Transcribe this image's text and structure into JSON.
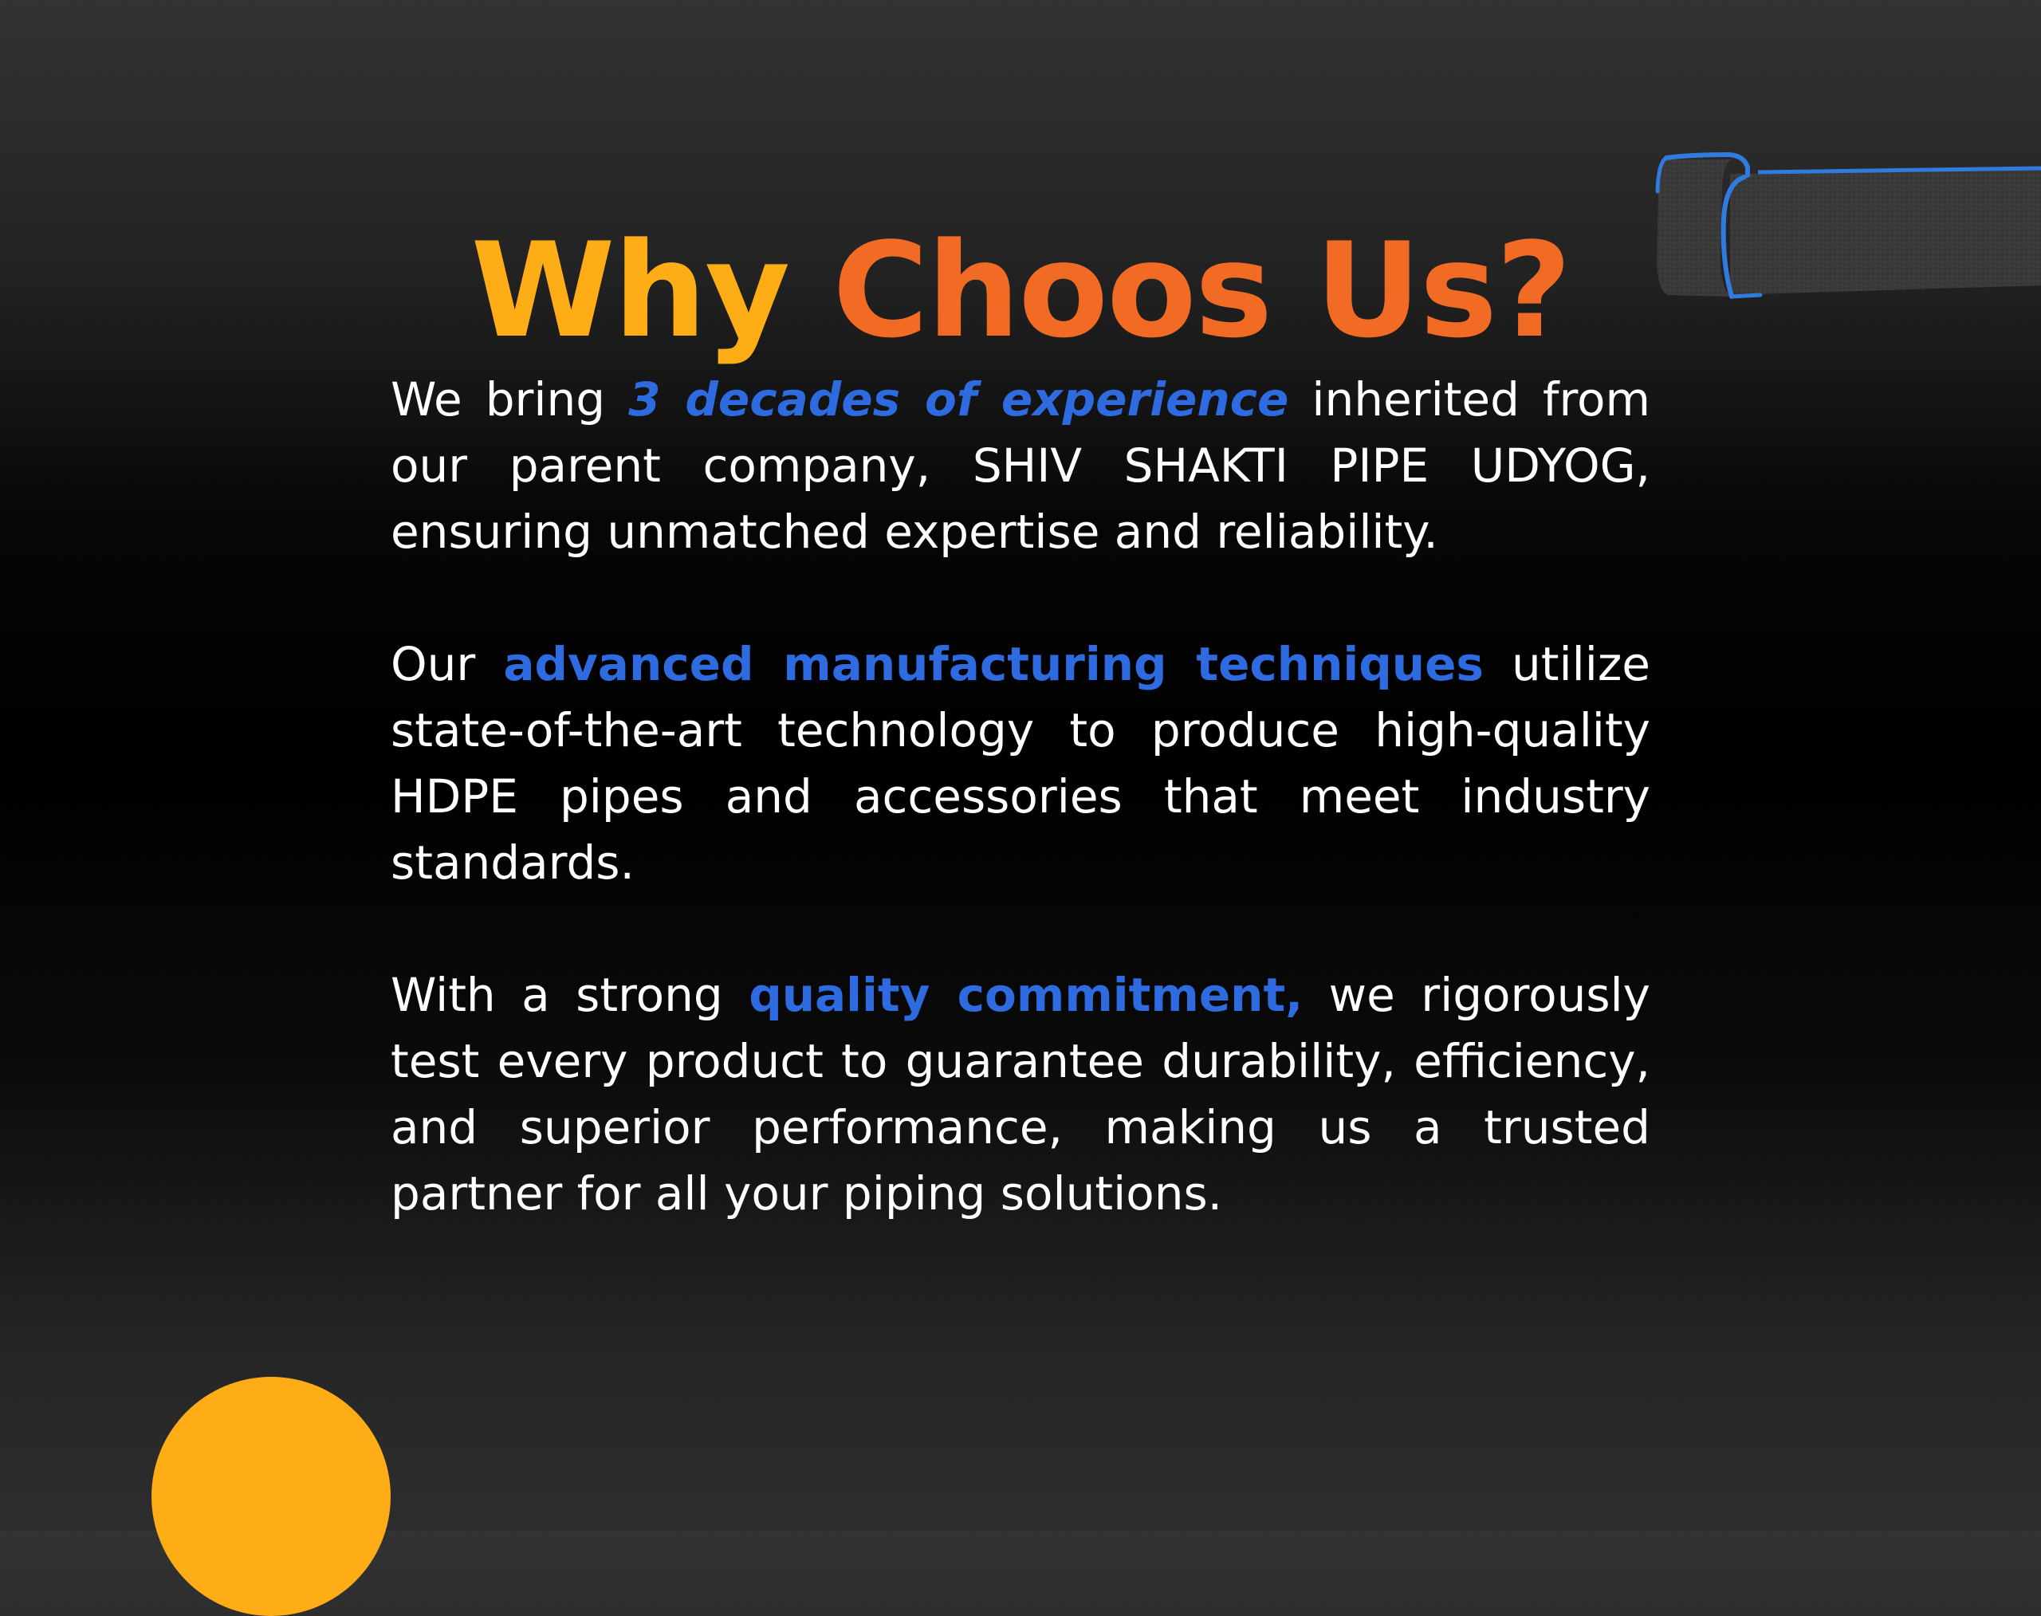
{
  "heading": {
    "part1": "Why",
    "part2": "Choos Us?"
  },
  "paragraphs": [
    {
      "before": "We bring ",
      "highlight": "3 decades of experience",
      "after": " inherited from our parent company, SHIV SHAKTI PIPE UDYOG, ensuring unmatched expertise and reliability."
    },
    {
      "before": "Our ",
      "highlight": "advanced manufacturing techniques",
      "after": " utilize state-of-the-art technology to produce high-quality HDPE pipes and accessories that meet industry standards."
    },
    {
      "before": "With a strong ",
      "highlight": "quality commitment,",
      "after": " we rigorously test every product to guarantee durability, efficiency, and superior performance, making us a trusted partner for all your piping solutions."
    }
  ],
  "colors": {
    "heading_part1": "#ffad17",
    "heading_part2": "#f26b25",
    "highlight": "#2f6be0",
    "body_text": "#ffffff",
    "circle": "#ffad17",
    "pipe_outline": "#2f7be0"
  },
  "decorations": {
    "pipe": "hdpe-pipe-illustration",
    "circle": "orange-circle-decoration"
  }
}
